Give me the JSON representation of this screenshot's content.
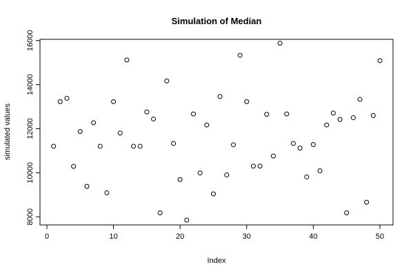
{
  "chart_data": {
    "type": "scatter",
    "title": "Simulation of Median",
    "xlabel": "Index",
    "ylabel": "simulated values",
    "xlim": [
      0,
      50
    ],
    "ylim": [
      7850,
      15900
    ],
    "xticks": [
      0,
      10,
      20,
      30,
      40,
      50
    ],
    "yticks": [
      8000,
      10000,
      12000,
      14000,
      16000
    ],
    "grid": false,
    "marker": "open-circle",
    "series": [
      {
        "x": [
          1,
          2,
          3,
          4,
          5,
          6,
          7,
          8,
          9,
          10,
          11,
          12,
          13,
          14,
          15,
          16,
          17,
          18,
          19,
          20,
          21,
          22,
          23,
          24,
          25,
          26,
          27,
          28,
          29,
          30,
          31,
          32,
          33,
          34,
          35,
          36,
          37,
          38,
          39,
          40,
          41,
          42,
          43,
          44,
          45,
          46,
          47,
          48,
          49,
          50
        ],
        "y": [
          11200,
          13230,
          13380,
          10290,
          11870,
          9380,
          12270,
          11200,
          9090,
          13230,
          11800,
          15120,
          11200,
          11200,
          12760,
          12440,
          8180,
          14170,
          11330,
          9690,
          7850,
          12670,
          9990,
          12170,
          9040,
          13460,
          9900,
          11270,
          15330,
          13230,
          10300,
          10300,
          12650,
          10760,
          15880,
          12670,
          11330,
          11120,
          9810,
          11280,
          10090,
          12170,
          12710,
          12420,
          8180,
          12500,
          13330,
          8660,
          12600,
          15090
        ]
      }
    ]
  }
}
